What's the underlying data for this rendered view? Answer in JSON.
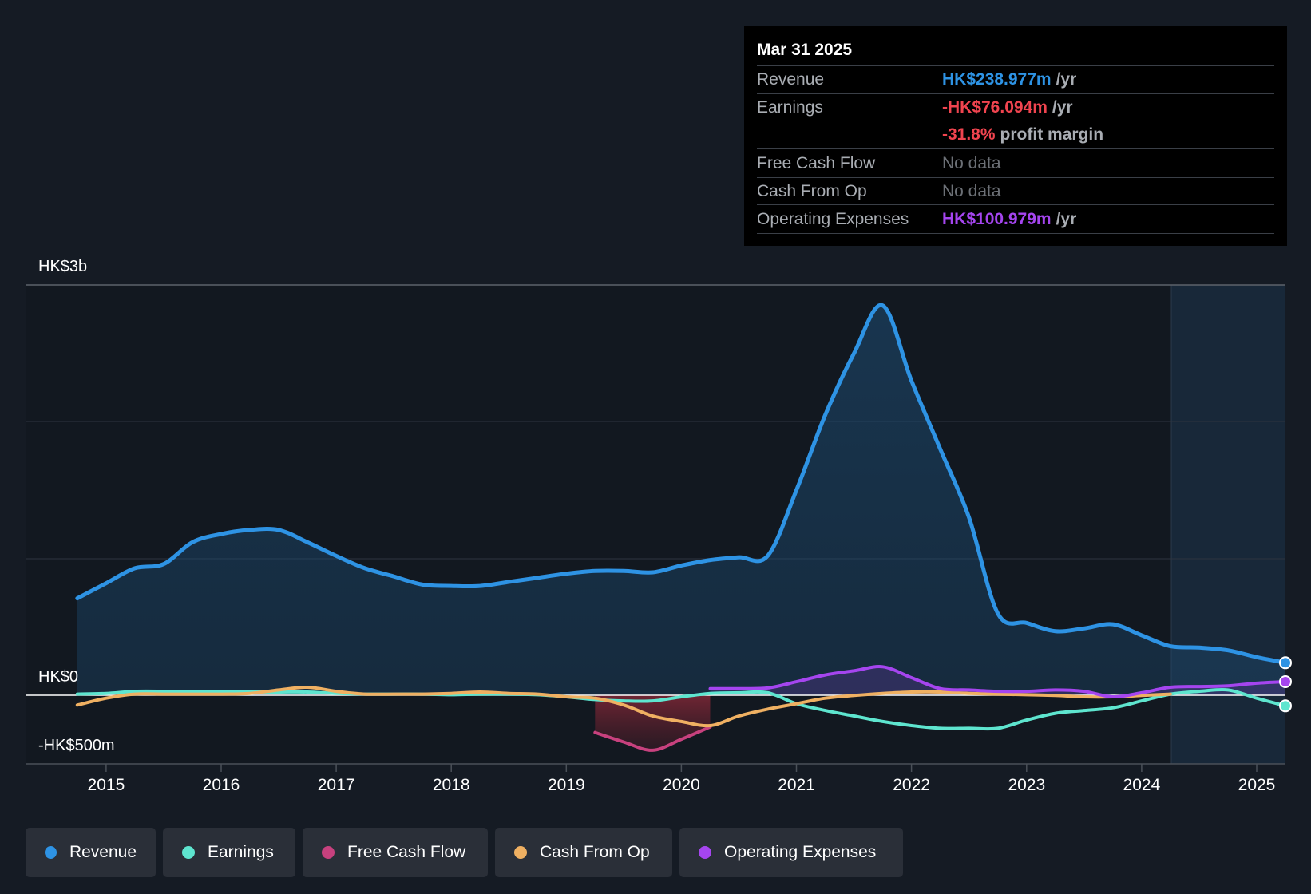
{
  "tooltip": {
    "date": "Mar 31 2025",
    "rows": [
      {
        "name": "Revenue",
        "value": "HK$238.977m",
        "unit": "/yr"
      },
      {
        "name": "Earnings",
        "value": "-HK$76.094m",
        "unit": "/yr"
      },
      {
        "name": "",
        "value": "-31.8%",
        "unit": "profit margin"
      },
      {
        "name": "Free Cash Flow",
        "value": "No data"
      },
      {
        "name": "Cash From Op",
        "value": "No data"
      },
      {
        "name": "Operating Expenses",
        "value": "HK$100.979m",
        "unit": "/yr"
      }
    ]
  },
  "legend": [
    {
      "label": "Revenue",
      "color": "#2e93e4"
    },
    {
      "label": "Earnings",
      "color": "#5ee5cf"
    },
    {
      "label": "Free Cash Flow",
      "color": "#c7417e"
    },
    {
      "label": "Cash From Op",
      "color": "#efb062"
    },
    {
      "label": "Operating Expenses",
      "color": "#a545ef"
    }
  ],
  "chart_data": {
    "type": "line",
    "title": "",
    "xlabel": "",
    "ylabel": "",
    "y_axis_labels": [
      "HK$3b",
      "HK$0",
      "-HK$500m"
    ],
    "ylim": [
      -500,
      3000
    ],
    "xlim": [
      2014.3,
      2025.25
    ],
    "x_ticks": [
      "2015",
      "2016",
      "2017",
      "2018",
      "2019",
      "2020",
      "2021",
      "2022",
      "2023",
      "2024",
      "2025"
    ],
    "units": "HK$ millions",
    "forecast_start": 2024.25,
    "series": [
      {
        "name": "Revenue",
        "color": "#2e93e4",
        "points": [
          [
            2014.75,
            710
          ],
          [
            2015.0,
            820
          ],
          [
            2015.25,
            930
          ],
          [
            2015.5,
            960
          ],
          [
            2015.75,
            1120
          ],
          [
            2016.0,
            1180
          ],
          [
            2016.25,
            1210
          ],
          [
            2016.5,
            1210
          ],
          [
            2016.75,
            1120
          ],
          [
            2017.0,
            1020
          ],
          [
            2017.25,
            930
          ],
          [
            2017.5,
            870
          ],
          [
            2017.75,
            810
          ],
          [
            2018.0,
            800
          ],
          [
            2018.25,
            800
          ],
          [
            2018.5,
            830
          ],
          [
            2018.75,
            860
          ],
          [
            2019.0,
            890
          ],
          [
            2019.25,
            910
          ],
          [
            2019.5,
            910
          ],
          [
            2019.75,
            900
          ],
          [
            2020.0,
            950
          ],
          [
            2020.25,
            990
          ],
          [
            2020.5,
            1010
          ],
          [
            2020.75,
            1020
          ],
          [
            2021.0,
            1500
          ],
          [
            2021.25,
            2050
          ],
          [
            2021.5,
            2500
          ],
          [
            2021.75,
            2850
          ],
          [
            2022.0,
            2300
          ],
          [
            2022.25,
            1800
          ],
          [
            2022.5,
            1300
          ],
          [
            2022.75,
            600
          ],
          [
            2023.0,
            530
          ],
          [
            2023.25,
            470
          ],
          [
            2023.5,
            490
          ],
          [
            2023.75,
            520
          ],
          [
            2024.0,
            440
          ],
          [
            2024.25,
            360
          ],
          [
            2024.5,
            350
          ],
          [
            2024.75,
            330
          ],
          [
            2025.0,
            280
          ],
          [
            2025.25,
            239
          ]
        ]
      },
      {
        "name": "Earnings",
        "color": "#5ee5cf",
        "points": [
          [
            2014.75,
            10
          ],
          [
            2015.0,
            15
          ],
          [
            2015.25,
            30
          ],
          [
            2015.5,
            30
          ],
          [
            2015.75,
            25
          ],
          [
            2016.0,
            25
          ],
          [
            2016.25,
            25
          ],
          [
            2016.5,
            25
          ],
          [
            2016.75,
            25
          ],
          [
            2017.0,
            15
          ],
          [
            2017.25,
            10
          ],
          [
            2017.5,
            10
          ],
          [
            2017.75,
            10
          ],
          [
            2018.0,
            5
          ],
          [
            2018.25,
            10
          ],
          [
            2018.5,
            10
          ],
          [
            2018.75,
            5
          ],
          [
            2019.0,
            -10
          ],
          [
            2019.25,
            -30
          ],
          [
            2019.5,
            -40
          ],
          [
            2019.75,
            -40
          ],
          [
            2020.0,
            -10
          ],
          [
            2020.25,
            15
          ],
          [
            2020.5,
            20
          ],
          [
            2020.75,
            20
          ],
          [
            2021.0,
            -60
          ],
          [
            2021.25,
            -110
          ],
          [
            2021.5,
            -150
          ],
          [
            2021.75,
            -190
          ],
          [
            2022.0,
            -220
          ],
          [
            2022.25,
            -240
          ],
          [
            2022.5,
            -240
          ],
          [
            2022.75,
            -240
          ],
          [
            2023.0,
            -180
          ],
          [
            2023.25,
            -130
          ],
          [
            2023.5,
            -110
          ],
          [
            2023.75,
            -90
          ],
          [
            2024.0,
            -40
          ],
          [
            2024.25,
            10
          ],
          [
            2024.5,
            30
          ],
          [
            2024.75,
            40
          ],
          [
            2025.0,
            -20
          ],
          [
            2025.25,
            -76
          ]
        ]
      },
      {
        "name": "Free Cash Flow",
        "color": "#c7417e",
        "points": [
          [
            2019.25,
            -270
          ],
          [
            2019.5,
            -340
          ],
          [
            2019.75,
            -400
          ],
          [
            2020.0,
            -320
          ],
          [
            2020.25,
            -230
          ]
        ]
      },
      {
        "name": "Cash From Op",
        "color": "#efb062",
        "points": [
          [
            2014.75,
            -70
          ],
          [
            2015.0,
            -20
          ],
          [
            2015.25,
            10
          ],
          [
            2015.5,
            10
          ],
          [
            2015.75,
            10
          ],
          [
            2016.0,
            10
          ],
          [
            2016.25,
            15
          ],
          [
            2016.5,
            40
          ],
          [
            2016.75,
            60
          ],
          [
            2017.0,
            30
          ],
          [
            2017.25,
            10
          ],
          [
            2017.5,
            10
          ],
          [
            2017.75,
            10
          ],
          [
            2018.0,
            15
          ],
          [
            2018.25,
            25
          ],
          [
            2018.5,
            15
          ],
          [
            2018.75,
            10
          ],
          [
            2019.0,
            -10
          ],
          [
            2019.25,
            -20
          ],
          [
            2019.5,
            -70
          ],
          [
            2019.75,
            -150
          ],
          [
            2020.0,
            -190
          ],
          [
            2020.25,
            -220
          ],
          [
            2020.5,
            -150
          ],
          [
            2020.75,
            -100
          ],
          [
            2021.0,
            -60
          ],
          [
            2021.25,
            -20
          ],
          [
            2021.5,
            0
          ],
          [
            2021.75,
            15
          ],
          [
            2022.0,
            25
          ],
          [
            2022.25,
            25
          ],
          [
            2022.5,
            15
          ],
          [
            2022.75,
            10
          ],
          [
            2023.0,
            5
          ],
          [
            2023.25,
            0
          ],
          [
            2023.5,
            -10
          ],
          [
            2023.75,
            -10
          ],
          [
            2024.0,
            0
          ],
          [
            2024.25,
            10
          ]
        ]
      },
      {
        "name": "Operating Expenses",
        "color": "#a545ef",
        "points": [
          [
            2020.25,
            50
          ],
          [
            2020.5,
            50
          ],
          [
            2020.75,
            55
          ],
          [
            2021.0,
            100
          ],
          [
            2021.25,
            150
          ],
          [
            2021.5,
            180
          ],
          [
            2021.75,
            210
          ],
          [
            2022.0,
            130
          ],
          [
            2022.25,
            50
          ],
          [
            2022.5,
            40
          ],
          [
            2022.75,
            30
          ],
          [
            2023.0,
            30
          ],
          [
            2023.25,
            40
          ],
          [
            2023.5,
            30
          ],
          [
            2023.75,
            -10
          ],
          [
            2024.0,
            20
          ],
          [
            2024.25,
            60
          ],
          [
            2024.5,
            65
          ],
          [
            2024.75,
            70
          ],
          [
            2025.0,
            90
          ],
          [
            2025.25,
            101
          ]
        ]
      }
    ]
  }
}
